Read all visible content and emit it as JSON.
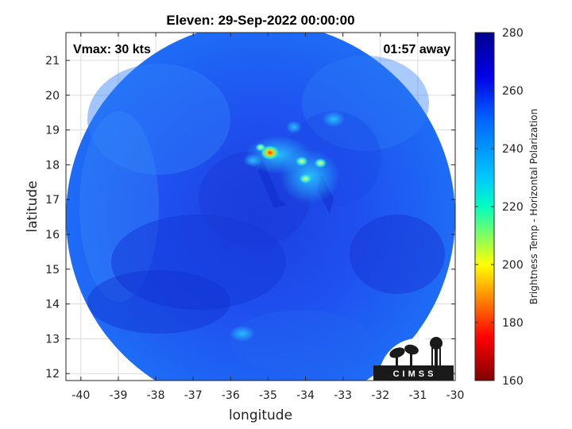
{
  "chart_data": {
    "type": "heatmap",
    "title": "Eleven: 29-Sep-2022 00:00:00",
    "xlabel": "longitude",
    "ylabel": "latitude",
    "xlim": [
      -40.4,
      -30
    ],
    "ylim": [
      11.8,
      21.8
    ],
    "xticks": [
      -40,
      -39,
      -38,
      -37,
      -36,
      -35,
      -34,
      -33,
      -32,
      -31,
      -30
    ],
    "yticks": [
      12,
      13,
      14,
      15,
      16,
      17,
      18,
      19,
      20,
      21
    ],
    "grid": true,
    "annotations": {
      "top_left": "Vmax: 30 kts",
      "top_right": "01:57 away"
    },
    "colorbar": {
      "label": "Brightness Temp - Horizontal Polarization",
      "min": 160,
      "max": 280,
      "ticks": [
        160,
        180,
        200,
        220,
        240,
        260,
        280
      ]
    },
    "background_value": 257,
    "features": [
      {
        "lon": -34.95,
        "lat": 18.35,
        "value": 185
      },
      {
        "lon": -34.0,
        "lat": 17.6,
        "value": 215
      },
      {
        "lon": -33.6,
        "lat": 18.05,
        "value": 215
      },
      {
        "lon": -34.1,
        "lat": 18.1,
        "value": 220
      },
      {
        "lon": -35.2,
        "lat": 18.5,
        "value": 235
      }
    ],
    "logo": "CIMSS"
  }
}
